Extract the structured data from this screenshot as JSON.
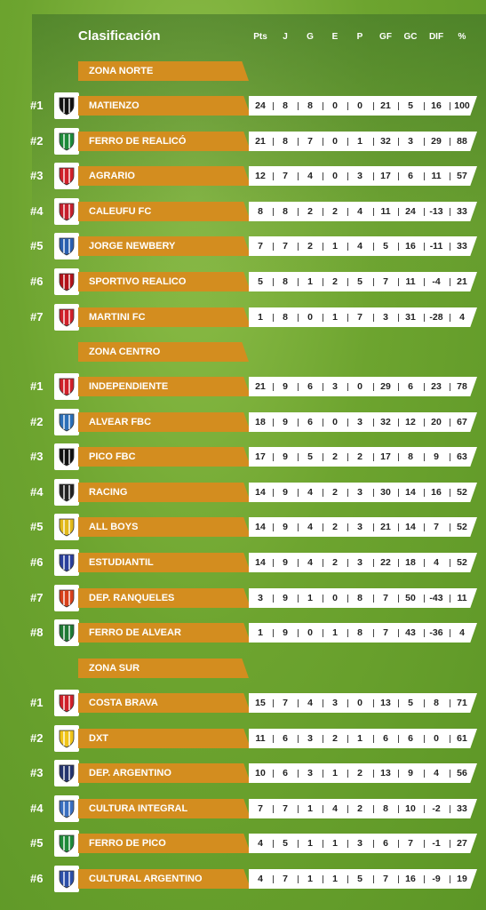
{
  "title": "Clasificación",
  "headers": [
    "Pts",
    "J",
    "G",
    "E",
    "P",
    "GF",
    "GC",
    "DIF",
    "%"
  ],
  "zones": [
    {
      "name": "ZONA NORTE",
      "teams": [
        {
          "rank": "#1",
          "name": "MATIENZO",
          "color": "#111111",
          "stats": [
            "24",
            "8",
            "8",
            "0",
            "0",
            "21",
            "5",
            "16",
            "100"
          ]
        },
        {
          "rank": "#2",
          "name": "FERRO DE REALICÓ",
          "color": "#1e8a3a",
          "stats": [
            "21",
            "8",
            "7",
            "0",
            "1",
            "32",
            "3",
            "29",
            "88"
          ]
        },
        {
          "rank": "#3",
          "name": "AGRARIO",
          "color": "#d0202a",
          "stats": [
            "12",
            "7",
            "4",
            "0",
            "3",
            "17",
            "6",
            "11",
            "57"
          ]
        },
        {
          "rank": "#4",
          "name": "CALEUFU FC",
          "color": "#c61f2d",
          "stats": [
            "8",
            "8",
            "2",
            "2",
            "4",
            "11",
            "24",
            "-13",
            "33"
          ]
        },
        {
          "rank": "#5",
          "name": "JORGE NEWBERY",
          "color": "#2a5fb0",
          "stats": [
            "7",
            "7",
            "2",
            "1",
            "4",
            "5",
            "16",
            "-11",
            "33"
          ]
        },
        {
          "rank": "#6",
          "name": "SPORTIVO REALICO",
          "color": "#b3121a",
          "stats": [
            "5",
            "8",
            "1",
            "2",
            "5",
            "7",
            "11",
            "-4",
            "21"
          ]
        },
        {
          "rank": "#7",
          "name": "MARTINI FC",
          "color": "#d0202a",
          "stats": [
            "1",
            "8",
            "0",
            "1",
            "7",
            "3",
            "31",
            "-28",
            "4"
          ]
        }
      ]
    },
    {
      "name": "ZONA CENTRO",
      "teams": [
        {
          "rank": "#1",
          "name": "INDEPENDIENTE",
          "color": "#d0202a",
          "stats": [
            "21",
            "9",
            "6",
            "3",
            "0",
            "29",
            "6",
            "23",
            "78"
          ]
        },
        {
          "rank": "#2",
          "name": "ALVEAR FBC",
          "color": "#2c6fb8",
          "stats": [
            "18",
            "9",
            "6",
            "0",
            "3",
            "32",
            "12",
            "20",
            "67"
          ]
        },
        {
          "rank": "#3",
          "name": "PICO FBC",
          "color": "#111111",
          "stats": [
            "17",
            "9",
            "5",
            "2",
            "2",
            "17",
            "8",
            "9",
            "63"
          ]
        },
        {
          "rank": "#4",
          "name": "RACING",
          "color": "#222222",
          "stats": [
            "14",
            "9",
            "4",
            "2",
            "3",
            "30",
            "14",
            "16",
            "52"
          ]
        },
        {
          "rank": "#5",
          "name": "ALL BOYS",
          "color": "#e2b91a",
          "stats": [
            "14",
            "9",
            "4",
            "2",
            "3",
            "21",
            "14",
            "7",
            "52"
          ]
        },
        {
          "rank": "#6",
          "name": "ESTUDIANTIL",
          "color": "#2a3f9c",
          "stats": [
            "14",
            "9",
            "4",
            "2",
            "3",
            "22",
            "18",
            "4",
            "52"
          ]
        },
        {
          "rank": "#7",
          "name": "DEP. RANQUELES",
          "color": "#d8401a",
          "stats": [
            "3",
            "9",
            "1",
            "0",
            "8",
            "7",
            "50",
            "-43",
            "11"
          ]
        },
        {
          "rank": "#8",
          "name": "FERRO DE ALVEAR",
          "color": "#1e7a35",
          "stats": [
            "1",
            "9",
            "0",
            "1",
            "8",
            "7",
            "43",
            "-36",
            "4"
          ]
        }
      ]
    },
    {
      "name": "ZONA SUR",
      "teams": [
        {
          "rank": "#1",
          "name": "COSTA BRAVA",
          "color": "#d0202a",
          "stats": [
            "15",
            "7",
            "4",
            "3",
            "0",
            "13",
            "5",
            "8",
            "71"
          ]
        },
        {
          "rank": "#2",
          "name": "DXT",
          "color": "#f0c419",
          "stats": [
            "11",
            "6",
            "3",
            "2",
            "1",
            "6",
            "6",
            "0",
            "61"
          ]
        },
        {
          "rank": "#3",
          "name": "DEP. ARGENTINO",
          "color": "#24346e",
          "stats": [
            "10",
            "6",
            "3",
            "1",
            "2",
            "13",
            "9",
            "4",
            "56"
          ]
        },
        {
          "rank": "#4",
          "name": "CULTURA INTEGRAL",
          "color": "#3a6fc0",
          "stats": [
            "7",
            "7",
            "1",
            "4",
            "2",
            "8",
            "10",
            "-2",
            "33"
          ]
        },
        {
          "rank": "#5",
          "name": "FERRO DE PICO",
          "color": "#1e8a3a",
          "stats": [
            "4",
            "5",
            "1",
            "1",
            "3",
            "6",
            "7",
            "-1",
            "27"
          ]
        },
        {
          "rank": "#6",
          "name": "CULTURAL ARGENTINO",
          "color": "#2c4fa8",
          "stats": [
            "4",
            "7",
            "1",
            "1",
            "5",
            "7",
            "16",
            "-9",
            "19"
          ]
        }
      ]
    }
  ]
}
